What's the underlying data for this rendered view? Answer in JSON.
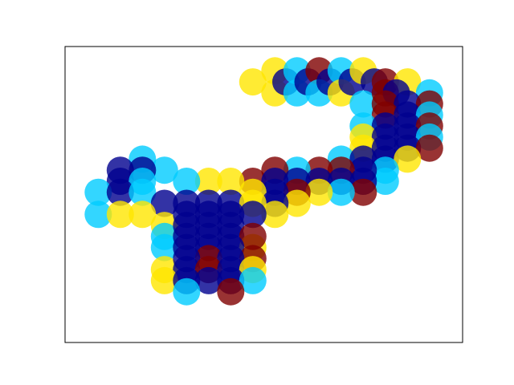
{
  "chart_data": {
    "type": "scatter",
    "title": "",
    "xlabel": "",
    "ylabel": "",
    "xlim": [
      0,
      18
    ],
    "ylim": [
      0,
      13.4
    ],
    "show_ticks": false,
    "grid": false,
    "marker_size_px": 17,
    "opacity": 0.8,
    "color_scale": [
      "#00008f",
      "#00ccff",
      "#ffe600",
      "#800000"
    ],
    "color_scale_name": "jet",
    "points": [
      {
        "x": 8.5,
        "y": 11.8,
        "v": 2
      },
      {
        "x": 9.5,
        "y": 12.3,
        "v": 2
      },
      {
        "x": 9.5,
        "y": 11.3,
        "v": 2
      },
      {
        "x": 10,
        "y": 11.8,
        "v": 0
      },
      {
        "x": 10.5,
        "y": 12.3,
        "v": 1
      },
      {
        "x": 10.5,
        "y": 11.3,
        "v": 1
      },
      {
        "x": 11,
        "y": 11.8,
        "v": 0
      },
      {
        "x": 11.5,
        "y": 12.3,
        "v": 3
      },
      {
        "x": 11.5,
        "y": 11.3,
        "v": 1
      },
      {
        "x": 12,
        "y": 11.8,
        "v": 0
      },
      {
        "x": 12.5,
        "y": 12.3,
        "v": 1
      },
      {
        "x": 12.5,
        "y": 11.3,
        "v": 2
      },
      {
        "x": 13,
        "y": 11.8,
        "v": 0
      },
      {
        "x": 13.5,
        "y": 12.3,
        "v": 2
      },
      {
        "x": 14,
        "y": 11.8,
        "v": 0
      },
      {
        "x": 14.5,
        "y": 11.8,
        "v": 3
      },
      {
        "x": 15.5,
        "y": 11.8,
        "v": 2
      },
      {
        "x": 16.5,
        "y": 11.3,
        "v": 1
      },
      {
        "x": 13.5,
        "y": 10.8,
        "v": 1
      },
      {
        "x": 14.5,
        "y": 11.3,
        "v": 3
      },
      {
        "x": 15,
        "y": 11.3,
        "v": 0
      },
      {
        "x": 14.5,
        "y": 10.8,
        "v": 3
      },
      {
        "x": 15.5,
        "y": 10.8,
        "v": 0
      },
      {
        "x": 16.5,
        "y": 10.8,
        "v": 3
      },
      {
        "x": 14.5,
        "y": 10.3,
        "v": 3
      },
      {
        "x": 15.5,
        "y": 10.3,
        "v": 0
      },
      {
        "x": 16.5,
        "y": 10.3,
        "v": 1
      },
      {
        "x": 13.5,
        "y": 9.8,
        "v": 1
      },
      {
        "x": 14.5,
        "y": 9.8,
        "v": 0
      },
      {
        "x": 15.5,
        "y": 9.8,
        "v": 0
      },
      {
        "x": 16.5,
        "y": 9.8,
        "v": 3
      },
      {
        "x": 13.5,
        "y": 9.3,
        "v": 2
      },
      {
        "x": 14.5,
        "y": 9.3,
        "v": 0
      },
      {
        "x": 15.5,
        "y": 9.3,
        "v": 0
      },
      {
        "x": 16.5,
        "y": 9.3,
        "v": 1
      },
      {
        "x": 13.5,
        "y": 8.8,
        "v": 2
      },
      {
        "x": 14.5,
        "y": 8.8,
        "v": 0
      },
      {
        "x": 15.5,
        "y": 8.8,
        "v": 0
      },
      {
        "x": 16.5,
        "y": 8.8,
        "v": 3
      },
      {
        "x": 12.5,
        "y": 8.3,
        "v": 1
      },
      {
        "x": 13.5,
        "y": 8.3,
        "v": 0
      },
      {
        "x": 14.5,
        "y": 8.3,
        "v": 0
      },
      {
        "x": 15.5,
        "y": 8.3,
        "v": 2
      },
      {
        "x": 14.5,
        "y": 7.8,
        "v": 1
      },
      {
        "x": 14.5,
        "y": 7.3,
        "v": 1
      },
      {
        "x": 13.5,
        "y": 7.8,
        "v": 0
      },
      {
        "x": 12.5,
        "y": 7.8,
        "v": 3
      },
      {
        "x": 11.5,
        "y": 7.8,
        "v": 3
      },
      {
        "x": 10.5,
        "y": 7.8,
        "v": 1
      },
      {
        "x": 9.5,
        "y": 7.8,
        "v": 3
      },
      {
        "x": 8.5,
        "y": 7.3,
        "v": 3
      },
      {
        "x": 13.5,
        "y": 7.3,
        "v": 0
      },
      {
        "x": 12.5,
        "y": 7.3,
        "v": 0
      },
      {
        "x": 11.5,
        "y": 7.3,
        "v": 0
      },
      {
        "x": 10.5,
        "y": 7.3,
        "v": 0
      },
      {
        "x": 9.5,
        "y": 7.3,
        "v": 0
      },
      {
        "x": 13.5,
        "y": 6.8,
        "v": 3
      },
      {
        "x": 12.5,
        "y": 6.8,
        "v": 1
      },
      {
        "x": 11.5,
        "y": 6.8,
        "v": 2
      },
      {
        "x": 10.5,
        "y": 6.8,
        "v": 3
      },
      {
        "x": 9.5,
        "y": 6.8,
        "v": 0
      },
      {
        "x": 8.5,
        "y": 6.8,
        "v": 2
      },
      {
        "x": 10.5,
        "y": 6.3,
        "v": 2
      },
      {
        "x": 9.5,
        "y": 6.3,
        "v": 0
      },
      {
        "x": 9.5,
        "y": 5.8,
        "v": 2
      },
      {
        "x": 7.5,
        "y": 7.3,
        "v": 2
      },
      {
        "x": 6.5,
        "y": 7.3,
        "v": 2
      },
      {
        "x": 5.5,
        "y": 7.3,
        "v": 1
      },
      {
        "x": 4.5,
        "y": 7.8,
        "v": 1
      },
      {
        "x": 3.5,
        "y": 8.3,
        "v": 1
      },
      {
        "x": 2.5,
        "y": 7.8,
        "v": 0
      },
      {
        "x": 3.5,
        "y": 7.8,
        "v": 0
      },
      {
        "x": 2.5,
        "y": 7.3,
        "v": 0
      },
      {
        "x": 3.5,
        "y": 7.3,
        "v": 1
      },
      {
        "x": 1.5,
        "y": 6.8,
        "v": 1
      },
      {
        "x": 1.5,
        "y": 5.8,
        "v": 1
      },
      {
        "x": 2.5,
        "y": 6.8,
        "v": 0
      },
      {
        "x": 3.5,
        "y": 6.8,
        "v": 1
      },
      {
        "x": 4.5,
        "y": 6.3,
        "v": 0
      },
      {
        "x": 2.5,
        "y": 5.8,
        "v": 2
      },
      {
        "x": 3.5,
        "y": 5.8,
        "v": 2
      },
      {
        "x": 4.5,
        "y": 5.3,
        "v": 2
      },
      {
        "x": 4.5,
        "y": 4.8,
        "v": 1
      },
      {
        "x": 4.5,
        "y": 4.3,
        "v": 1
      },
      {
        "x": 5.5,
        "y": 6.3,
        "v": 0
      },
      {
        "x": 6.5,
        "y": 6.3,
        "v": 0
      },
      {
        "x": 7.5,
        "y": 6.3,
        "v": 0
      },
      {
        "x": 8.5,
        "y": 6.3,
        "v": 2
      },
      {
        "x": 5.5,
        "y": 5.8,
        "v": 0
      },
      {
        "x": 6.5,
        "y": 5.8,
        "v": 0
      },
      {
        "x": 7.5,
        "y": 5.8,
        "v": 0
      },
      {
        "x": 8.5,
        "y": 5.8,
        "v": 0
      },
      {
        "x": 5.5,
        "y": 5.3,
        "v": 0
      },
      {
        "x": 6.5,
        "y": 5.3,
        "v": 0
      },
      {
        "x": 7.5,
        "y": 5.3,
        "v": 0
      },
      {
        "x": 5.5,
        "y": 4.8,
        "v": 0
      },
      {
        "x": 6.5,
        "y": 4.8,
        "v": 0
      },
      {
        "x": 7.5,
        "y": 4.8,
        "v": 0
      },
      {
        "x": 8.5,
        "y": 4.3,
        "v": 2
      },
      {
        "x": 8.5,
        "y": 4.8,
        "v": 3
      },
      {
        "x": 5.5,
        "y": 4.3,
        "v": 0
      },
      {
        "x": 6.5,
        "y": 4.3,
        "v": 0
      },
      {
        "x": 7.5,
        "y": 4.3,
        "v": 0
      },
      {
        "x": 6.5,
        "y": 3.8,
        "v": 3
      },
      {
        "x": 8.5,
        "y": 3.8,
        "v": 3
      },
      {
        "x": 4.5,
        "y": 3.3,
        "v": 2
      },
      {
        "x": 5.5,
        "y": 3.8,
        "v": 0
      },
      {
        "x": 7.5,
        "y": 3.8,
        "v": 0
      },
      {
        "x": 5.5,
        "y": 3.3,
        "v": 0
      },
      {
        "x": 6.5,
        "y": 3.3,
        "v": 3
      },
      {
        "x": 7.5,
        "y": 3.3,
        "v": 0
      },
      {
        "x": 8.5,
        "y": 3.3,
        "v": 2
      },
      {
        "x": 4.5,
        "y": 2.8,
        "v": 2
      },
      {
        "x": 5.5,
        "y": 2.8,
        "v": 0
      },
      {
        "x": 6.5,
        "y": 2.8,
        "v": 0
      },
      {
        "x": 7.5,
        "y": 2.8,
        "v": 0
      },
      {
        "x": 8.5,
        "y": 2.8,
        "v": 1
      },
      {
        "x": 5.5,
        "y": 2.3,
        "v": 1
      },
      {
        "x": 7.5,
        "y": 2.3,
        "v": 3
      }
    ]
  }
}
